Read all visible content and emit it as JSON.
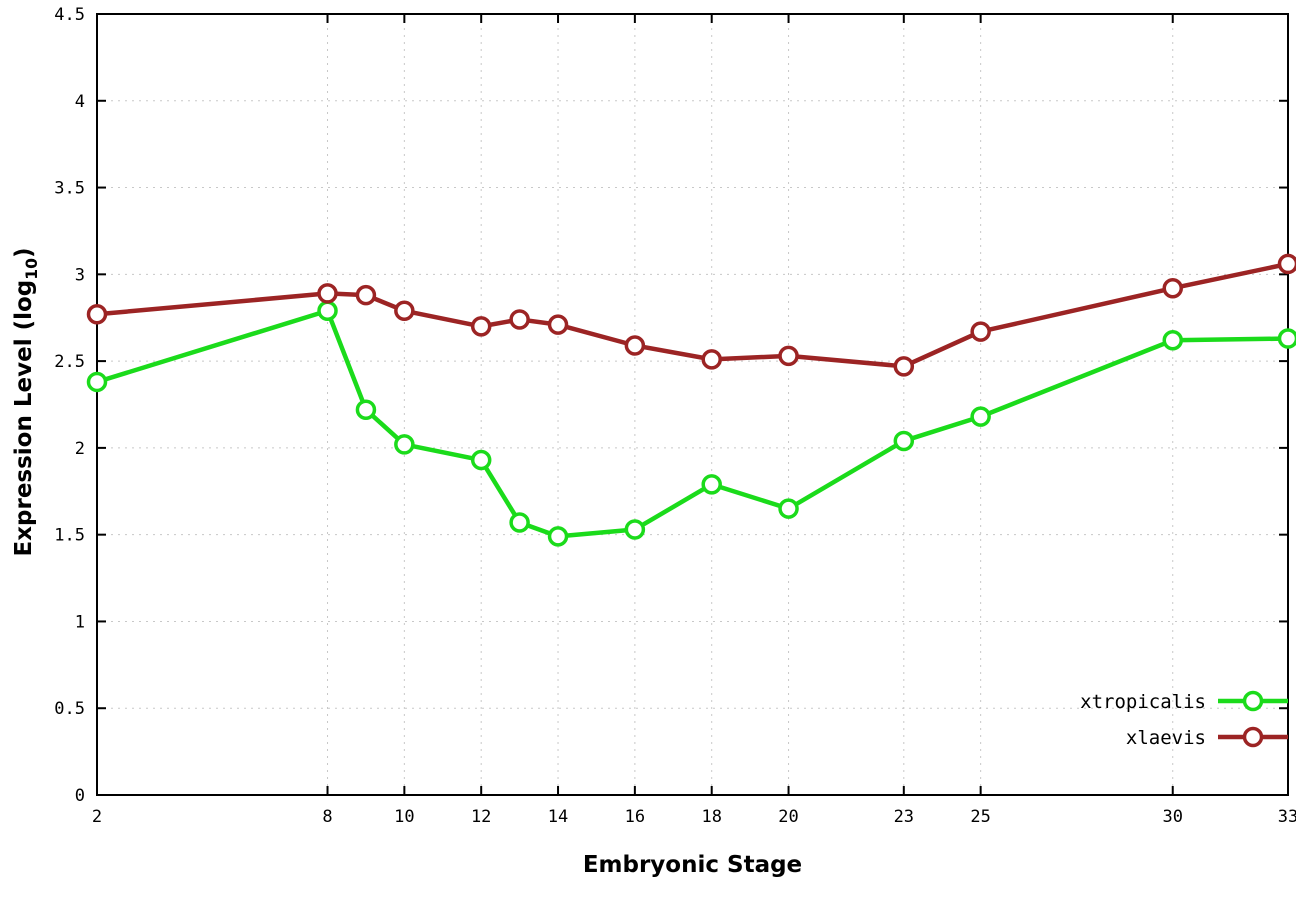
{
  "chart_data": {
    "type": "line",
    "title": "",
    "xlabel": "Embryonic Stage",
    "ylabel_prefix": "Expression Level (log",
    "ylabel_sub": "10",
    "ylabel_suffix": ")",
    "xlim": [
      2,
      33
    ],
    "ylim": [
      0,
      4.5
    ],
    "x_ticks": [
      2,
      8,
      10,
      12,
      14,
      16,
      18,
      20,
      23,
      25,
      30,
      33
    ],
    "y_ticks": [
      0,
      0.5,
      1,
      1.5,
      2,
      2.5,
      3,
      3.5,
      4,
      4.5
    ],
    "grid": true,
    "legend_position": "bottom-right",
    "x": [
      2,
      8,
      9,
      10,
      12,
      13,
      14,
      16,
      18,
      20,
      23,
      25,
      30,
      33
    ],
    "series": [
      {
        "name": "xtropicalis",
        "color": "#1bdb1b",
        "values": [
          2.38,
          2.79,
          2.22,
          2.02,
          1.93,
          1.57,
          1.49,
          1.53,
          1.79,
          1.65,
          2.04,
          2.18,
          2.62,
          2.63
        ]
      },
      {
        "name": "xlaevis",
        "color": "#9c2424",
        "values": [
          2.77,
          2.89,
          2.88,
          2.79,
          2.7,
          2.74,
          2.71,
          2.59,
          2.51,
          2.53,
          2.47,
          2.67,
          2.92,
          3.06
        ]
      }
    ]
  },
  "colors": {
    "background": "#ffffff",
    "axis": "#000000",
    "grid": "#c8c8c8",
    "marker_fill": "#ffffff"
  }
}
